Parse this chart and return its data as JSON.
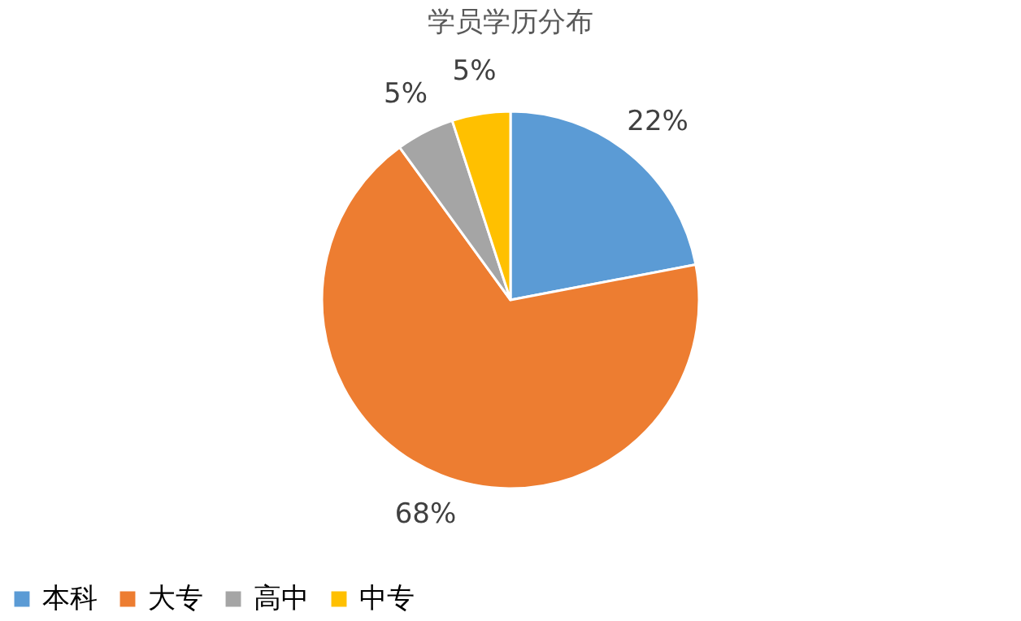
{
  "chart_data": {
    "type": "pie",
    "title": "学员学历分布",
    "categories": [
      "本科",
      "大专",
      "高中",
      "中专"
    ],
    "values": [
      22,
      68,
      5,
      5
    ],
    "colors": [
      "#5b9bd5",
      "#ed7d31",
      "#a5a5a5",
      "#ffc000"
    ],
    "value_labels": [
      "22%",
      "68%",
      "5%",
      "5%"
    ],
    "legend": "bottom"
  }
}
